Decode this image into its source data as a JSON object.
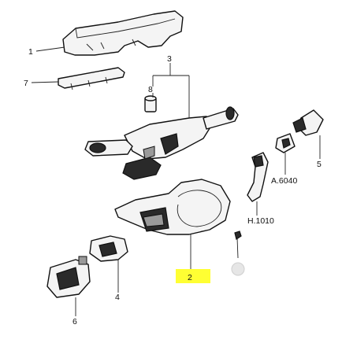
{
  "callouts": [
    {
      "id": "c1",
      "text": "1"
    },
    {
      "id": "c2",
      "text": "2"
    },
    {
      "id": "c3",
      "text": "3"
    },
    {
      "id": "c4",
      "text": "4"
    },
    {
      "id": "c5",
      "text": "5"
    },
    {
      "id": "c6",
      "text": "6"
    },
    {
      "id": "c7",
      "text": "7"
    },
    {
      "id": "c8",
      "text": "8"
    },
    {
      "id": "c9",
      "text": "A.6040"
    },
    {
      "id": "c10",
      "text": "H.1010"
    }
  ],
  "colors": {
    "highlight": "#ffff33",
    "line": "#111111",
    "fill": "#f4f4f4"
  }
}
